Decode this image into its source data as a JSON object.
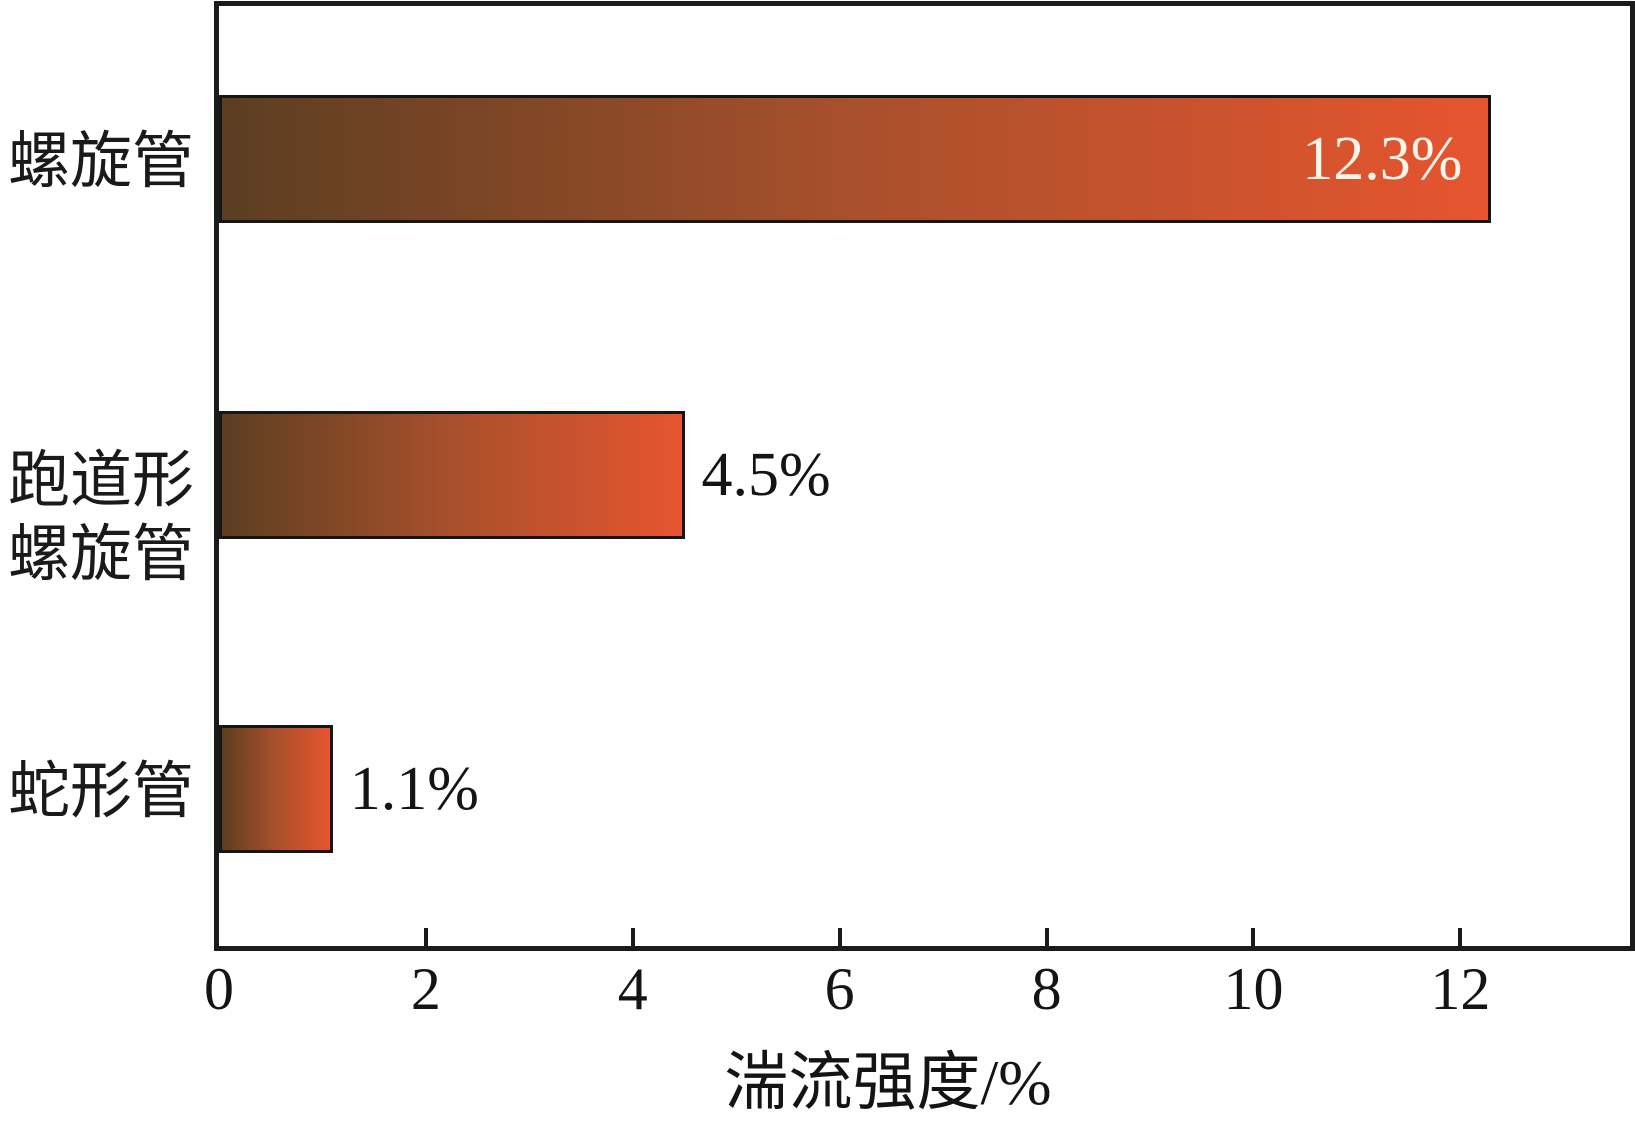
{
  "chart_data": {
    "type": "bar",
    "orientation": "horizontal",
    "title": "",
    "xlabel": "湍流强度/%",
    "ylabel": "",
    "categories": [
      "螺旋管",
      "跑道形螺旋管",
      "蛇形管"
    ],
    "categories_display": [
      "螺旋管",
      "跑道形\n螺旋管",
      "蛇形管"
    ],
    "values": [
      12.3,
      4.5,
      1.1
    ],
    "value_labels": [
      "12.3%",
      "4.5%",
      "1.1%"
    ],
    "x_ticks": [
      0,
      2,
      4,
      6,
      8,
      10,
      12
    ],
    "xlim": [
      0,
      13.64
    ],
    "grid": false,
    "legend": false,
    "colors": {
      "bar_gradient_start": "#5c3e21",
      "bar_gradient_mid": "#a9502c",
      "bar_gradient_end": "#e6552f",
      "bar_border": "#161616",
      "axis_frame": "#1b1b1b",
      "inside_label_text": "#f9f5ec",
      "outside_label_text": "#141414"
    }
  }
}
